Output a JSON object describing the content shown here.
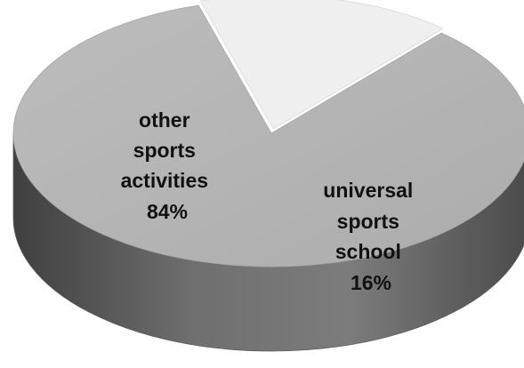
{
  "chart_data": {
    "type": "pie",
    "style": "3d",
    "title": "",
    "legend": "none",
    "slices": [
      {
        "label_lines": [
          "universal",
          "sports",
          "school"
        ],
        "label": "universal sports school",
        "percent_label": "16%",
        "value": 16,
        "color": "#efefef",
        "exploded": true
      },
      {
        "label_lines": [
          "other",
          "sports",
          "activities"
        ],
        "label": "other sports activities",
        "percent_label": "84%",
        "value": 84,
        "color": "#b4b4b4",
        "exploded": false
      }
    ]
  }
}
